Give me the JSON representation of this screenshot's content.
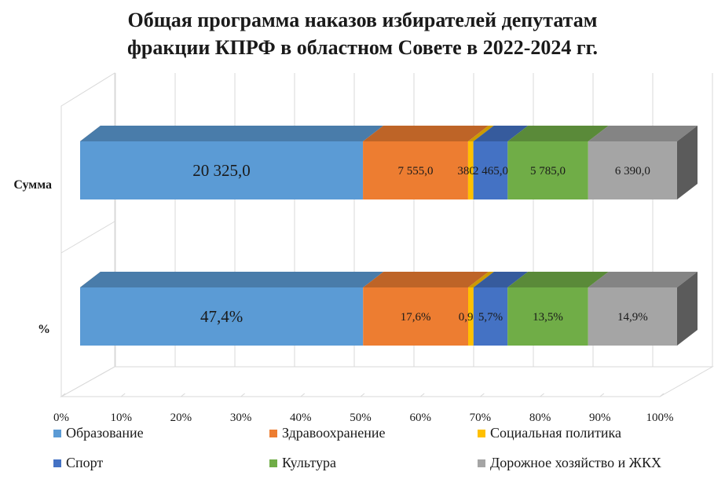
{
  "chart_data": {
    "type": "bar",
    "orientation": "horizontal",
    "stacked": "percent",
    "three_d": true,
    "title": "Общая программа наказов избирателей депутатам фракции КПРФ в областном Совете в 2022-2024 гг.",
    "title_lines": [
      "Общая программа наказов избирателей депутатам",
      "фракции КПРФ в областном Совете в 2022-2024 гг."
    ],
    "categories": [
      "Сумма",
      "%"
    ],
    "xlim": [
      0,
      100
    ],
    "x_ticks": [
      "0%",
      "10%",
      "20%",
      "30%",
      "40%",
      "50%",
      "60%",
      "70%",
      "80%",
      "90%",
      "100%"
    ],
    "grid": true,
    "legend_position": "bottom",
    "series": [
      {
        "name": "Образование",
        "color": "#5b9bd5",
        "values": [
          20325.0,
          47.4
        ],
        "labels": [
          "20 325,0",
          "47,4%"
        ]
      },
      {
        "name": "Здравоохранение",
        "color": "#ed7d31",
        "values": [
          7555.0,
          17.6
        ],
        "labels": [
          "7 555,0",
          "17,6%"
        ]
      },
      {
        "name": "Социальная политика",
        "color": "#ffc000",
        "values": [
          380.0,
          0.9
        ],
        "labels": [
          "380,0",
          "0,9%"
        ]
      },
      {
        "name": "Спорт",
        "color": "#4472c4",
        "values": [
          2465.0,
          5.7
        ],
        "labels": [
          "2 465,0",
          "5,7%"
        ]
      },
      {
        "name": "Культура",
        "color": "#70ad47",
        "values": [
          5785.0,
          13.5
        ],
        "labels": [
          "5 785,0",
          "13,5%"
        ]
      },
      {
        "name": "Дорожное хозяйство и ЖКХ",
        "color": "#a5a5a5",
        "values": [
          6390.0,
          14.9
        ],
        "labels": [
          "6 390,0",
          "14,9%"
        ]
      }
    ]
  }
}
